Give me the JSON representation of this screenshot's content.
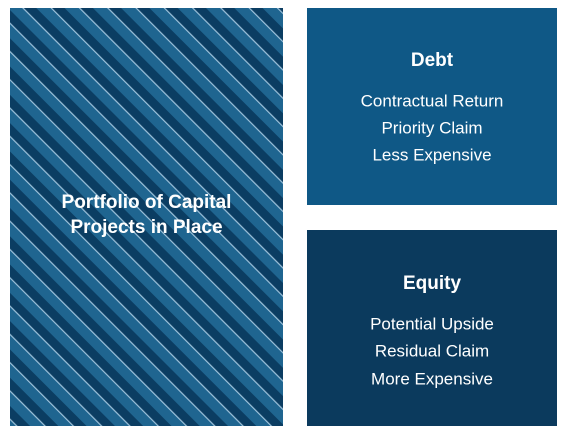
{
  "left": {
    "label_lines": [
      "Portfolio of Capital",
      "Projects in Place"
    ]
  },
  "boxes": [
    {
      "title": "Debt",
      "items": [
        "Contractual Return",
        "Priority Claim",
        "Less Expensive"
      ]
    },
    {
      "title": "Equity",
      "items": [
        "Potential Upside",
        "Residual Claim",
        "More Expensive"
      ]
    }
  ]
}
